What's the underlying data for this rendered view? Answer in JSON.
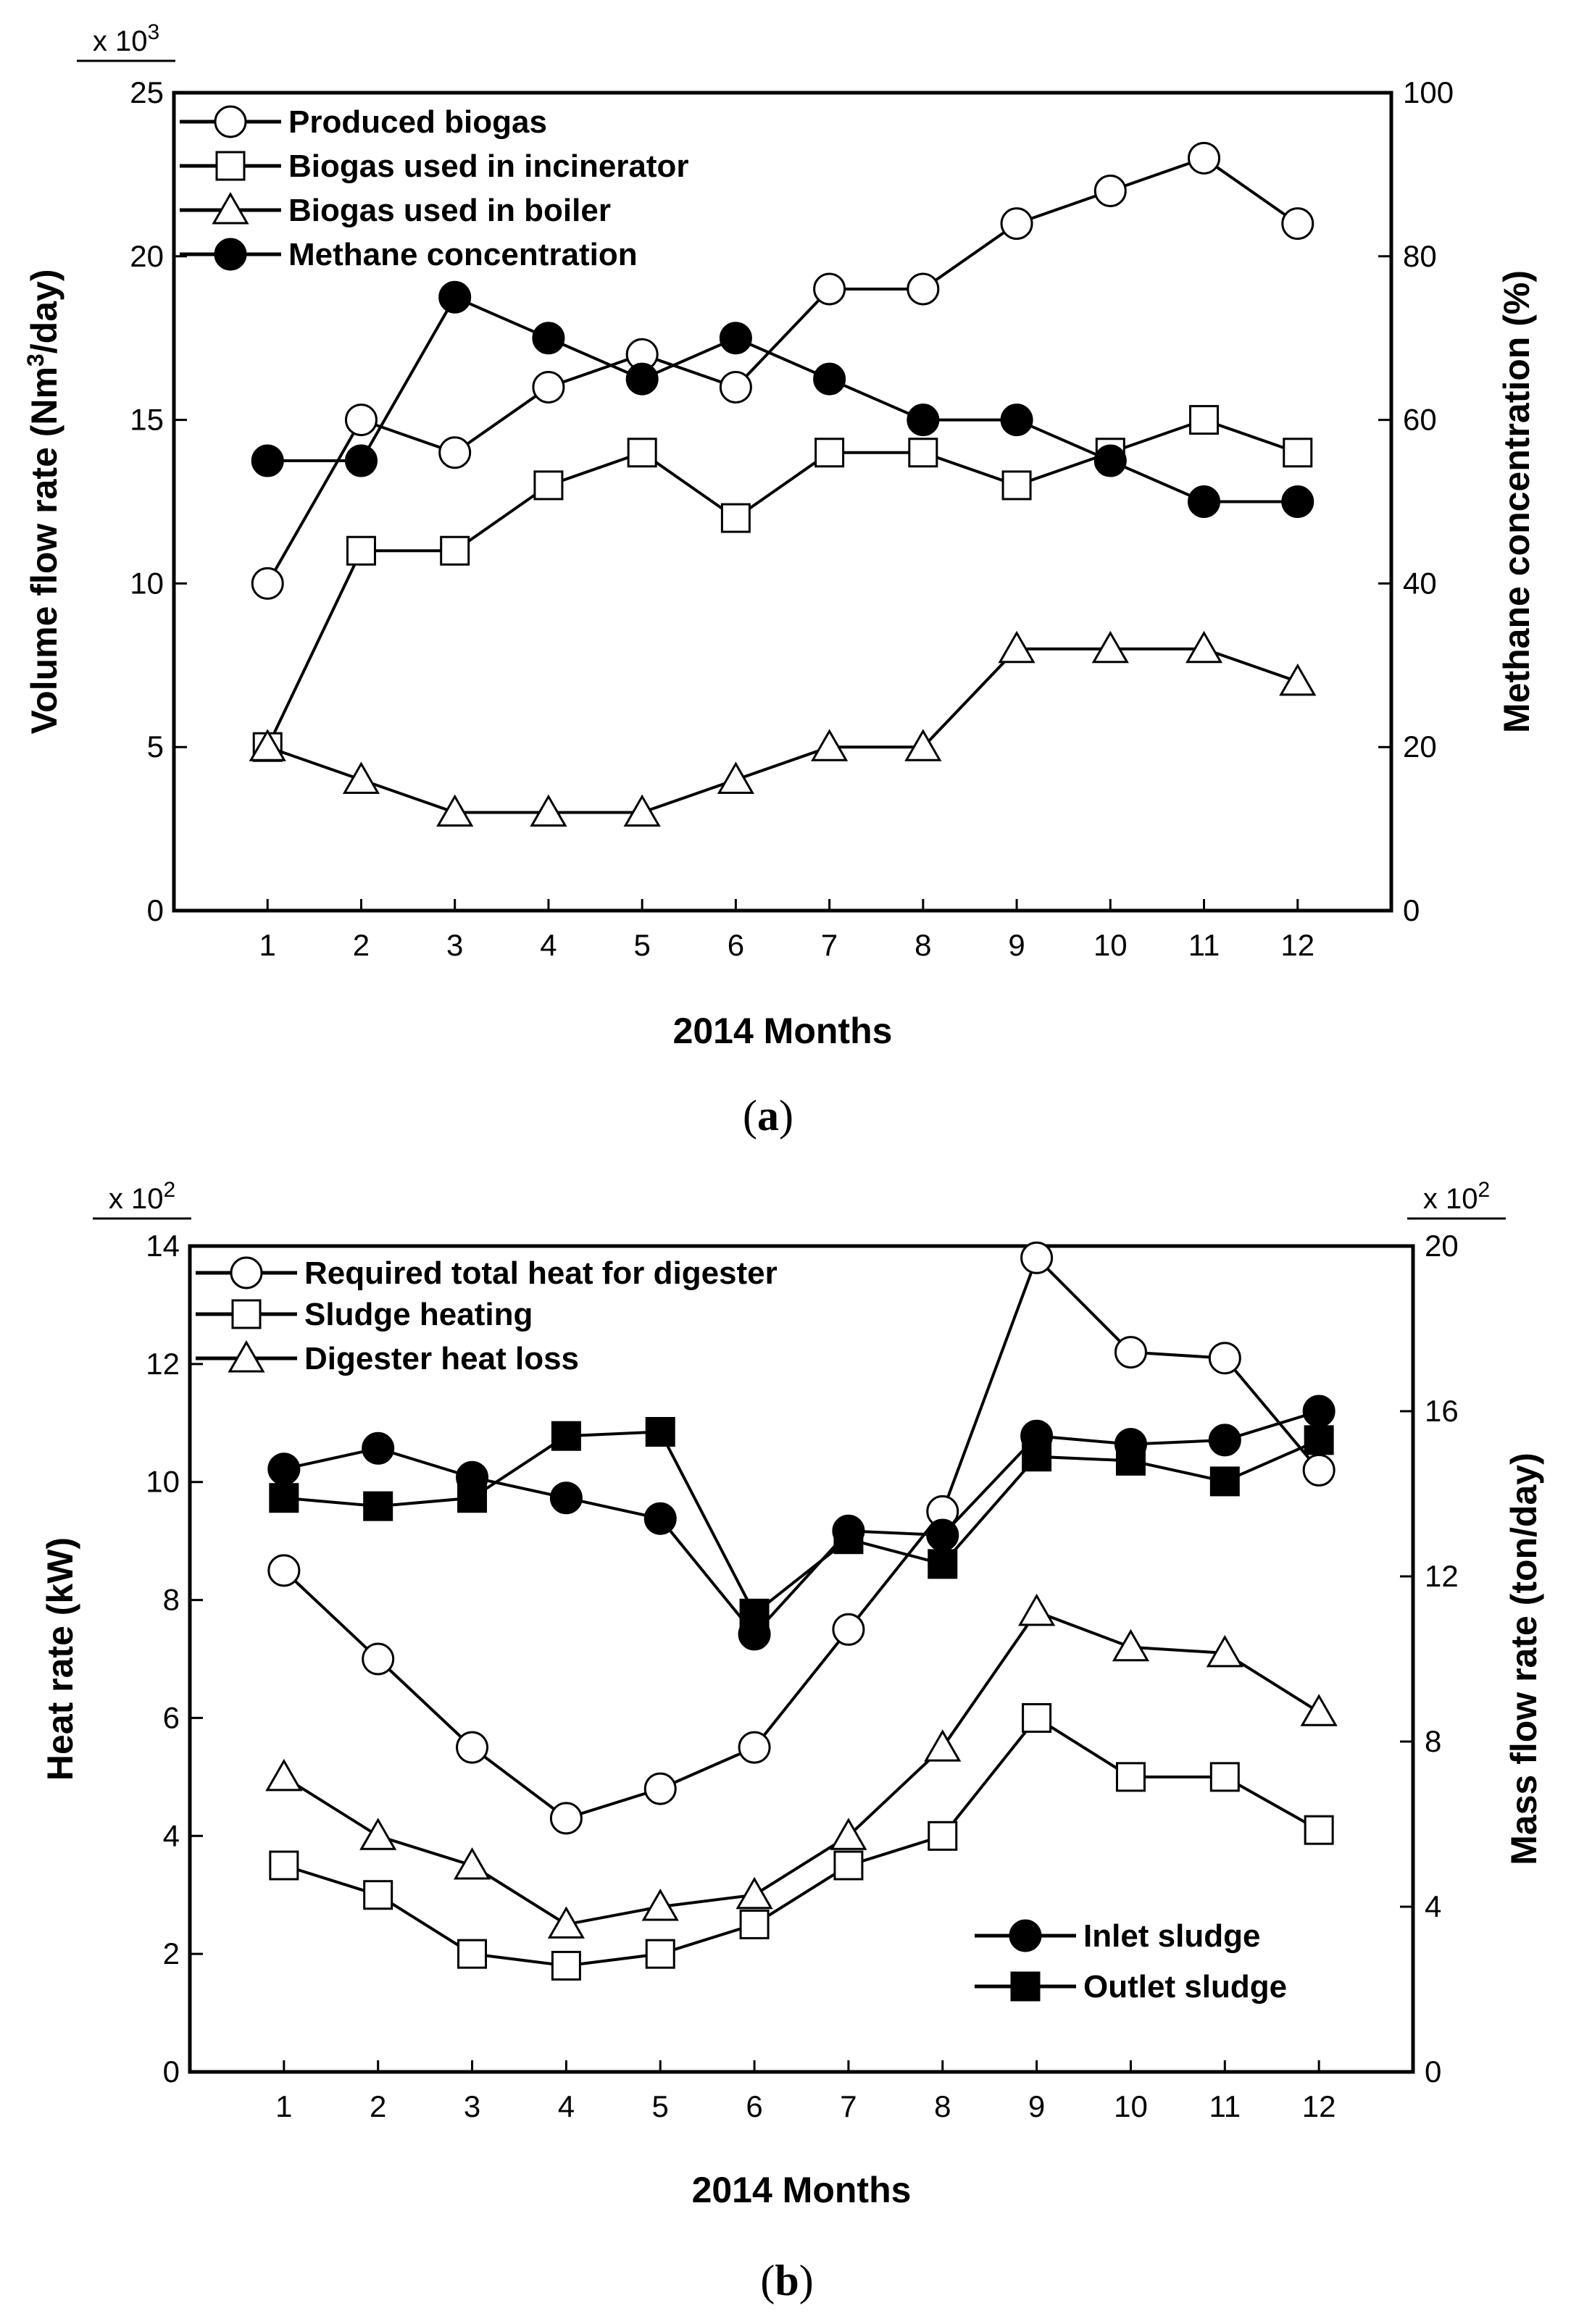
{
  "chart_data": [
    {
      "id": "a",
      "type": "line",
      "caption_open": "(",
      "caption_letter": "a",
      "caption_close": ")",
      "xlabel": "2014 Months",
      "ylabel": "Volume flow rate (Nm³/day)",
      "ylabel_left": "Volume flow rate (Nm",
      "ylabel_sup": "3",
      "ylabel_right": "/day)",
      "y2label": "Methane concentration (%)",
      "y_multiplier": "x 10",
      "y_multiplier_exp": "3",
      "x": [
        1,
        2,
        3,
        4,
        5,
        6,
        7,
        8,
        9,
        10,
        11,
        12
      ],
      "xticks": [
        "1",
        "2",
        "3",
        "4",
        "5",
        "6",
        "7",
        "8",
        "9",
        "10",
        "11",
        "12"
      ],
      "ylim": [
        0,
        25
      ],
      "yticks": [
        0,
        5,
        10,
        15,
        20,
        25
      ],
      "y2lim": [
        0,
        100
      ],
      "y2ticks": [
        0,
        20,
        40,
        60,
        80,
        100
      ],
      "series": [
        {
          "name": "Produced biogas",
          "axis": "left",
          "marker": "circle-open",
          "values": [
            10,
            15,
            14,
            16,
            17,
            16,
            19,
            19,
            21,
            22,
            23,
            21
          ]
        },
        {
          "name": "Biogas used in incinerator",
          "axis": "left",
          "marker": "square-open",
          "values": [
            5,
            11,
            11,
            13,
            14,
            12,
            14,
            14,
            13,
            14,
            15,
            14
          ]
        },
        {
          "name": "Biogas used in boiler",
          "axis": "left",
          "marker": "triangle-open",
          "values": [
            5,
            4,
            3,
            3,
            3,
            4,
            5,
            5,
            8,
            8,
            8,
            7
          ]
        },
        {
          "name": "Methane concentration",
          "axis": "right",
          "marker": "circle-filled",
          "values": [
            55,
            55,
            75,
            70,
            65,
            70,
            65,
            60,
            60,
            55,
            50,
            50
          ]
        }
      ]
    },
    {
      "id": "b",
      "type": "line",
      "caption_open": "(",
      "caption_letter": "b",
      "caption_close": ")",
      "xlabel": "2014 Months",
      "ylabel": "Heat rate (kW)",
      "y2label": "Mass flow rate (ton/day)",
      "y_multiplier": "x 10",
      "y_multiplier_exp": "2",
      "y2_multiplier": "x 10",
      "y2_multiplier_exp": "2",
      "x": [
        1,
        2,
        3,
        4,
        5,
        6,
        7,
        8,
        9,
        10,
        11,
        12
      ],
      "xticks": [
        "1",
        "2",
        "3",
        "4",
        "5",
        "6",
        "7",
        "8",
        "9",
        "10",
        "11",
        "12"
      ],
      "ylim": [
        0,
        14
      ],
      "yticks": [
        0,
        2,
        4,
        6,
        8,
        10,
        12,
        14
      ],
      "y2lim": [
        0,
        20
      ],
      "y2ticks": [
        0,
        4,
        8,
        12,
        16,
        20
      ],
      "series": [
        {
          "name": "Required total heat for digester",
          "axis": "left",
          "marker": "circle-open",
          "values": [
            8.5,
            7.0,
            5.5,
            4.3,
            4.8,
            5.5,
            7.5,
            9.5,
            13.8,
            12.2,
            12.1,
            10.2
          ]
        },
        {
          "name": "Sludge heating",
          "axis": "left",
          "marker": "square-open",
          "values": [
            3.5,
            3.0,
            2.0,
            1.8,
            2.0,
            2.5,
            3.5,
            4.0,
            6.0,
            5.0,
            5.0,
            4.1
          ]
        },
        {
          "name": "Digester heat loss",
          "axis": "left",
          "marker": "triangle-open",
          "values": [
            5.0,
            4.0,
            3.5,
            2.5,
            2.8,
            3.0,
            4.0,
            5.5,
            7.8,
            7.2,
            7.1,
            6.1
          ]
        },
        {
          "name": "Inlet sludge",
          "axis": "right",
          "marker": "circle-filled",
          "values": [
            14.6,
            15.1,
            14.4,
            13.9,
            13.4,
            10.6,
            13.1,
            13.0,
            15.4,
            15.2,
            15.3,
            16.0
          ]
        },
        {
          "name": "Outlet sludge",
          "axis": "right",
          "marker": "square-filled",
          "values": [
            13.9,
            13.7,
            13.9,
            15.4,
            15.5,
            11.1,
            12.9,
            12.3,
            14.9,
            14.8,
            14.3,
            15.3
          ]
        }
      ]
    }
  ]
}
